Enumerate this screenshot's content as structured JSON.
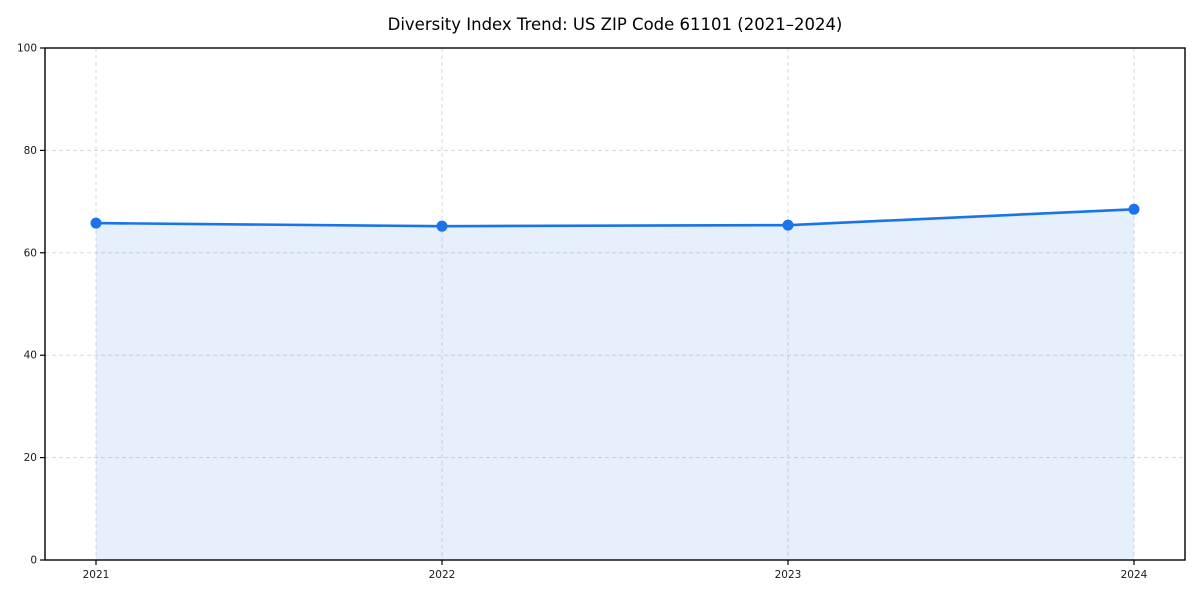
{
  "chart_data": {
    "type": "area",
    "title": "Diversity Index Trend: US ZIP Code 61101 (2021–2024)",
    "categories": [
      "2021",
      "2022",
      "2023",
      "2024"
    ],
    "series": [
      {
        "name": "Diversity Index",
        "values": [
          65.8,
          65.2,
          65.4,
          68.5
        ]
      }
    ],
    "xlabel": "",
    "ylabel": "",
    "ylim": [
      0,
      100
    ],
    "yticks": [
      0,
      20,
      40,
      60,
      80,
      100
    ],
    "grid": true,
    "grid_style": "dashed",
    "legend_position": "none",
    "line_color": "#1a73e8",
    "marker_color": "#1a73e8",
    "fill_color": "rgba(26,115,232,0.11)",
    "gridline_color": "#d9d9d9",
    "spine_color": "#000000",
    "background_color": "#ffffff"
  }
}
